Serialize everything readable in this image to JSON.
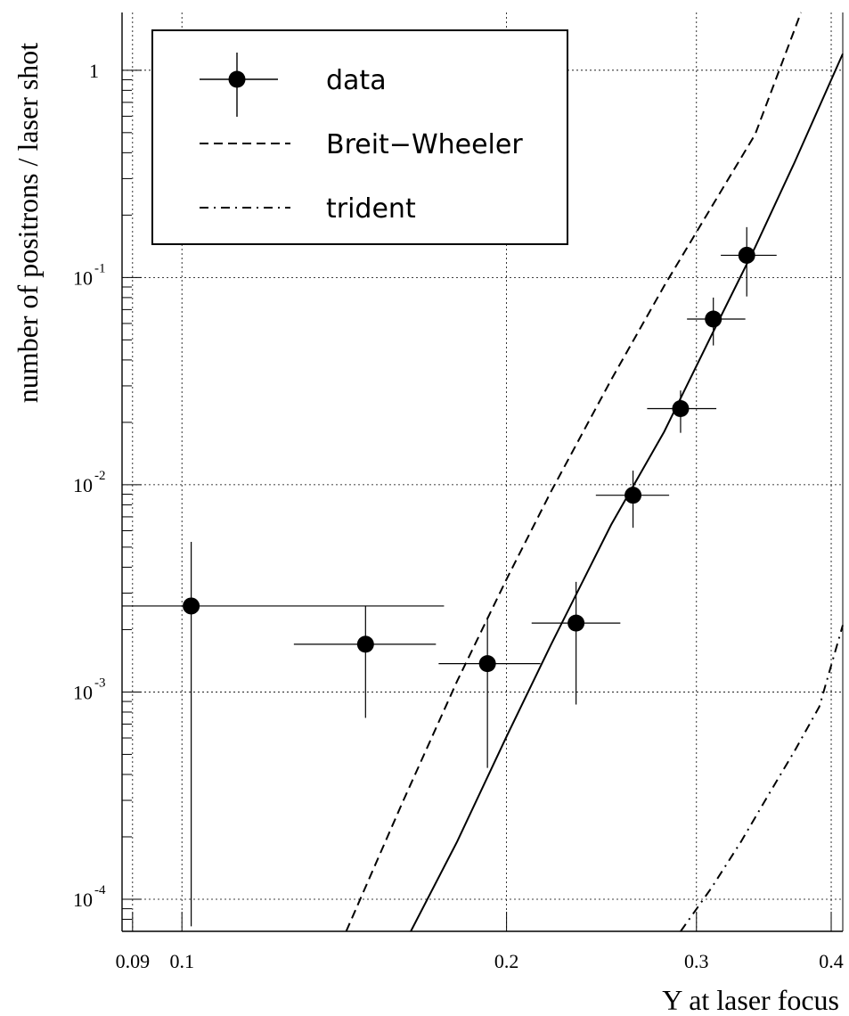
{
  "chart_data": {
    "type": "scatter",
    "title": "",
    "xlabel": "Υ at laser focus",
    "ylabel": "number of positrons / laser shot",
    "xscale": "log",
    "yscale": "log",
    "xlim": [
      0.088,
      0.41
    ],
    "ylim": [
      7e-05,
      1.9
    ],
    "grid": true,
    "legend_position": "top-left",
    "x_ticks": [
      {
        "value": 0.09,
        "label": "0.09"
      },
      {
        "value": 0.1,
        "label": "0.1"
      },
      {
        "value": 0.2,
        "label": "0.2"
      },
      {
        "value": 0.3,
        "label": "0.3"
      },
      {
        "value": 0.4,
        "label": "0.4"
      }
    ],
    "y_ticks": [
      {
        "value": 1,
        "base": "1",
        "exp": ""
      },
      {
        "value": 0.1,
        "base": "10",
        "exp": "-1"
      },
      {
        "value": 0.01,
        "base": "10",
        "exp": "-2"
      },
      {
        "value": 0.001,
        "base": "10",
        "exp": "-3"
      },
      {
        "value": 0.0001,
        "base": "10",
        "exp": "-4"
      }
    ],
    "series": [
      {
        "name": "data",
        "style": "points-with-errorbars",
        "points": [
          {
            "x": 0.102,
            "y": 0.0026,
            "xlo": 0.088,
            "xhi": 0.175,
            "ylo": 7.4e-05,
            "yhi": 0.0053
          },
          {
            "x": 0.148,
            "y": 0.0017,
            "xlo": 0.127,
            "xhi": 0.172,
            "ylo": 0.00075,
            "yhi": 0.0026
          },
          {
            "x": 0.192,
            "y": 0.00137,
            "xlo": 0.173,
            "xhi": 0.215,
            "ylo": 0.00043,
            "yhi": 0.0023
          },
          {
            "x": 0.232,
            "y": 0.00215,
            "xlo": 0.211,
            "xhi": 0.255,
            "ylo": 0.00087,
            "yhi": 0.0034
          },
          {
            "x": 0.262,
            "y": 0.0089,
            "xlo": 0.242,
            "xhi": 0.283,
            "ylo": 0.0062,
            "yhi": 0.0117
          },
          {
            "x": 0.29,
            "y": 0.0233,
            "xlo": 0.27,
            "xhi": 0.313,
            "ylo": 0.0178,
            "yhi": 0.0285
          },
          {
            "x": 0.311,
            "y": 0.063,
            "xlo": 0.294,
            "xhi": 0.333,
            "ylo": 0.047,
            "yhi": 0.08
          },
          {
            "x": 0.334,
            "y": 0.128,
            "xlo": 0.316,
            "xhi": 0.356,
            "ylo": 0.081,
            "yhi": 0.175
          }
        ]
      },
      {
        "name": "Breit−Wheeler",
        "style": "dashed",
        "x": [
          0.142,
          0.16,
          0.18,
          0.2,
          0.22,
          0.25,
          0.28,
          0.31,
          0.34,
          0.375
        ],
        "y": [
          7e-05,
          0.00029,
          0.00113,
          0.0035,
          0.0093,
          0.032,
          0.091,
          0.22,
          0.49,
          1.9
        ]
      },
      {
        "name": "trident",
        "style": "dash-dot",
        "x": [
          0.29,
          0.31,
          0.33,
          0.35,
          0.37,
          0.39,
          0.41
        ],
        "y": [
          7e-05,
          0.000114,
          0.00019,
          0.00032,
          0.00052,
          0.00085,
          0.0021
        ]
      },
      {
        "name": "",
        "style": "solid",
        "x": [
          0.163,
          0.18,
          0.2,
          0.22,
          0.25,
          0.28,
          0.31,
          0.34,
          0.37,
          0.41
        ],
        "y": [
          7e-05,
          0.00019,
          0.00061,
          0.0017,
          0.0064,
          0.018,
          0.053,
          0.14,
          0.36,
          1.2
        ]
      }
    ]
  }
}
